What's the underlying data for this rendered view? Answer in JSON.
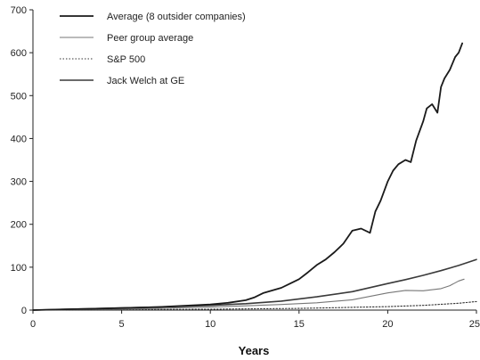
{
  "chart_data": {
    "type": "line",
    "title": "",
    "xlabel": "Years",
    "ylabel": "",
    "xlim": [
      0,
      25
    ],
    "ylim": [
      0,
      700
    ],
    "x_ticks": [
      0,
      5,
      10,
      15,
      20,
      25
    ],
    "y_ticks": [
      0,
      100,
      200,
      300,
      400,
      500,
      600,
      700
    ],
    "grid": false,
    "legend_position": "top-left",
    "series": [
      {
        "name": "Average (8 outsider companies)",
        "color": "#1a1a1a",
        "style": "solid",
        "x": [
          0,
          1,
          2,
          3,
          4,
          5,
          6,
          7,
          8,
          9,
          10,
          11,
          12,
          12.5,
          13,
          13.5,
          14,
          14.5,
          15,
          15.5,
          16,
          16.5,
          17,
          17.5,
          18,
          18.5,
          19,
          19.3,
          19.6,
          20,
          20.3,
          20.6,
          21,
          21.3,
          21.6,
          22,
          22.2,
          22.5,
          22.8,
          23,
          23.2,
          23.5,
          23.8,
          24,
          24.2
        ],
        "y": [
          0,
          1,
          2,
          3,
          4,
          5,
          6,
          7,
          9,
          11,
          13,
          17,
          23,
          30,
          40,
          46,
          52,
          62,
          72,
          88,
          105,
          118,
          135,
          155,
          185,
          190,
          180,
          230,
          255,
          300,
          325,
          340,
          350,
          345,
          395,
          440,
          470,
          480,
          460,
          520,
          540,
          560,
          590,
          600,
          622
        ]
      },
      {
        "name": "Peer group average",
        "color": "#777777",
        "style": "solid",
        "x": [
          0,
          2,
          4,
          6,
          8,
          10,
          12,
          14,
          16,
          18,
          19,
          20,
          21,
          22,
          23,
          23.5,
          24,
          24.3
        ],
        "y": [
          0,
          1,
          2,
          3,
          5,
          7,
          10,
          13,
          17,
          24,
          32,
          40,
          46,
          45,
          50,
          57,
          68,
          72
        ]
      },
      {
        "name": "S&P 500",
        "color": "#333333",
        "style": "dotted",
        "x": [
          0,
          5,
          10,
          15,
          20,
          22,
          24,
          25
        ],
        "y": [
          0,
          1,
          2,
          4,
          8,
          11,
          16,
          20
        ]
      },
      {
        "name": "Jack Welch at GE",
        "color": "#3a3a3a",
        "style": "solid",
        "x": [
          0,
          2,
          4,
          6,
          8,
          10,
          12,
          14,
          16,
          18,
          20,
          21,
          22,
          23,
          24,
          25
        ],
        "y": [
          0,
          2,
          4,
          6,
          8,
          11,
          15,
          21,
          31,
          43,
          62,
          71,
          81,
          92,
          104,
          118
        ]
      }
    ]
  }
}
